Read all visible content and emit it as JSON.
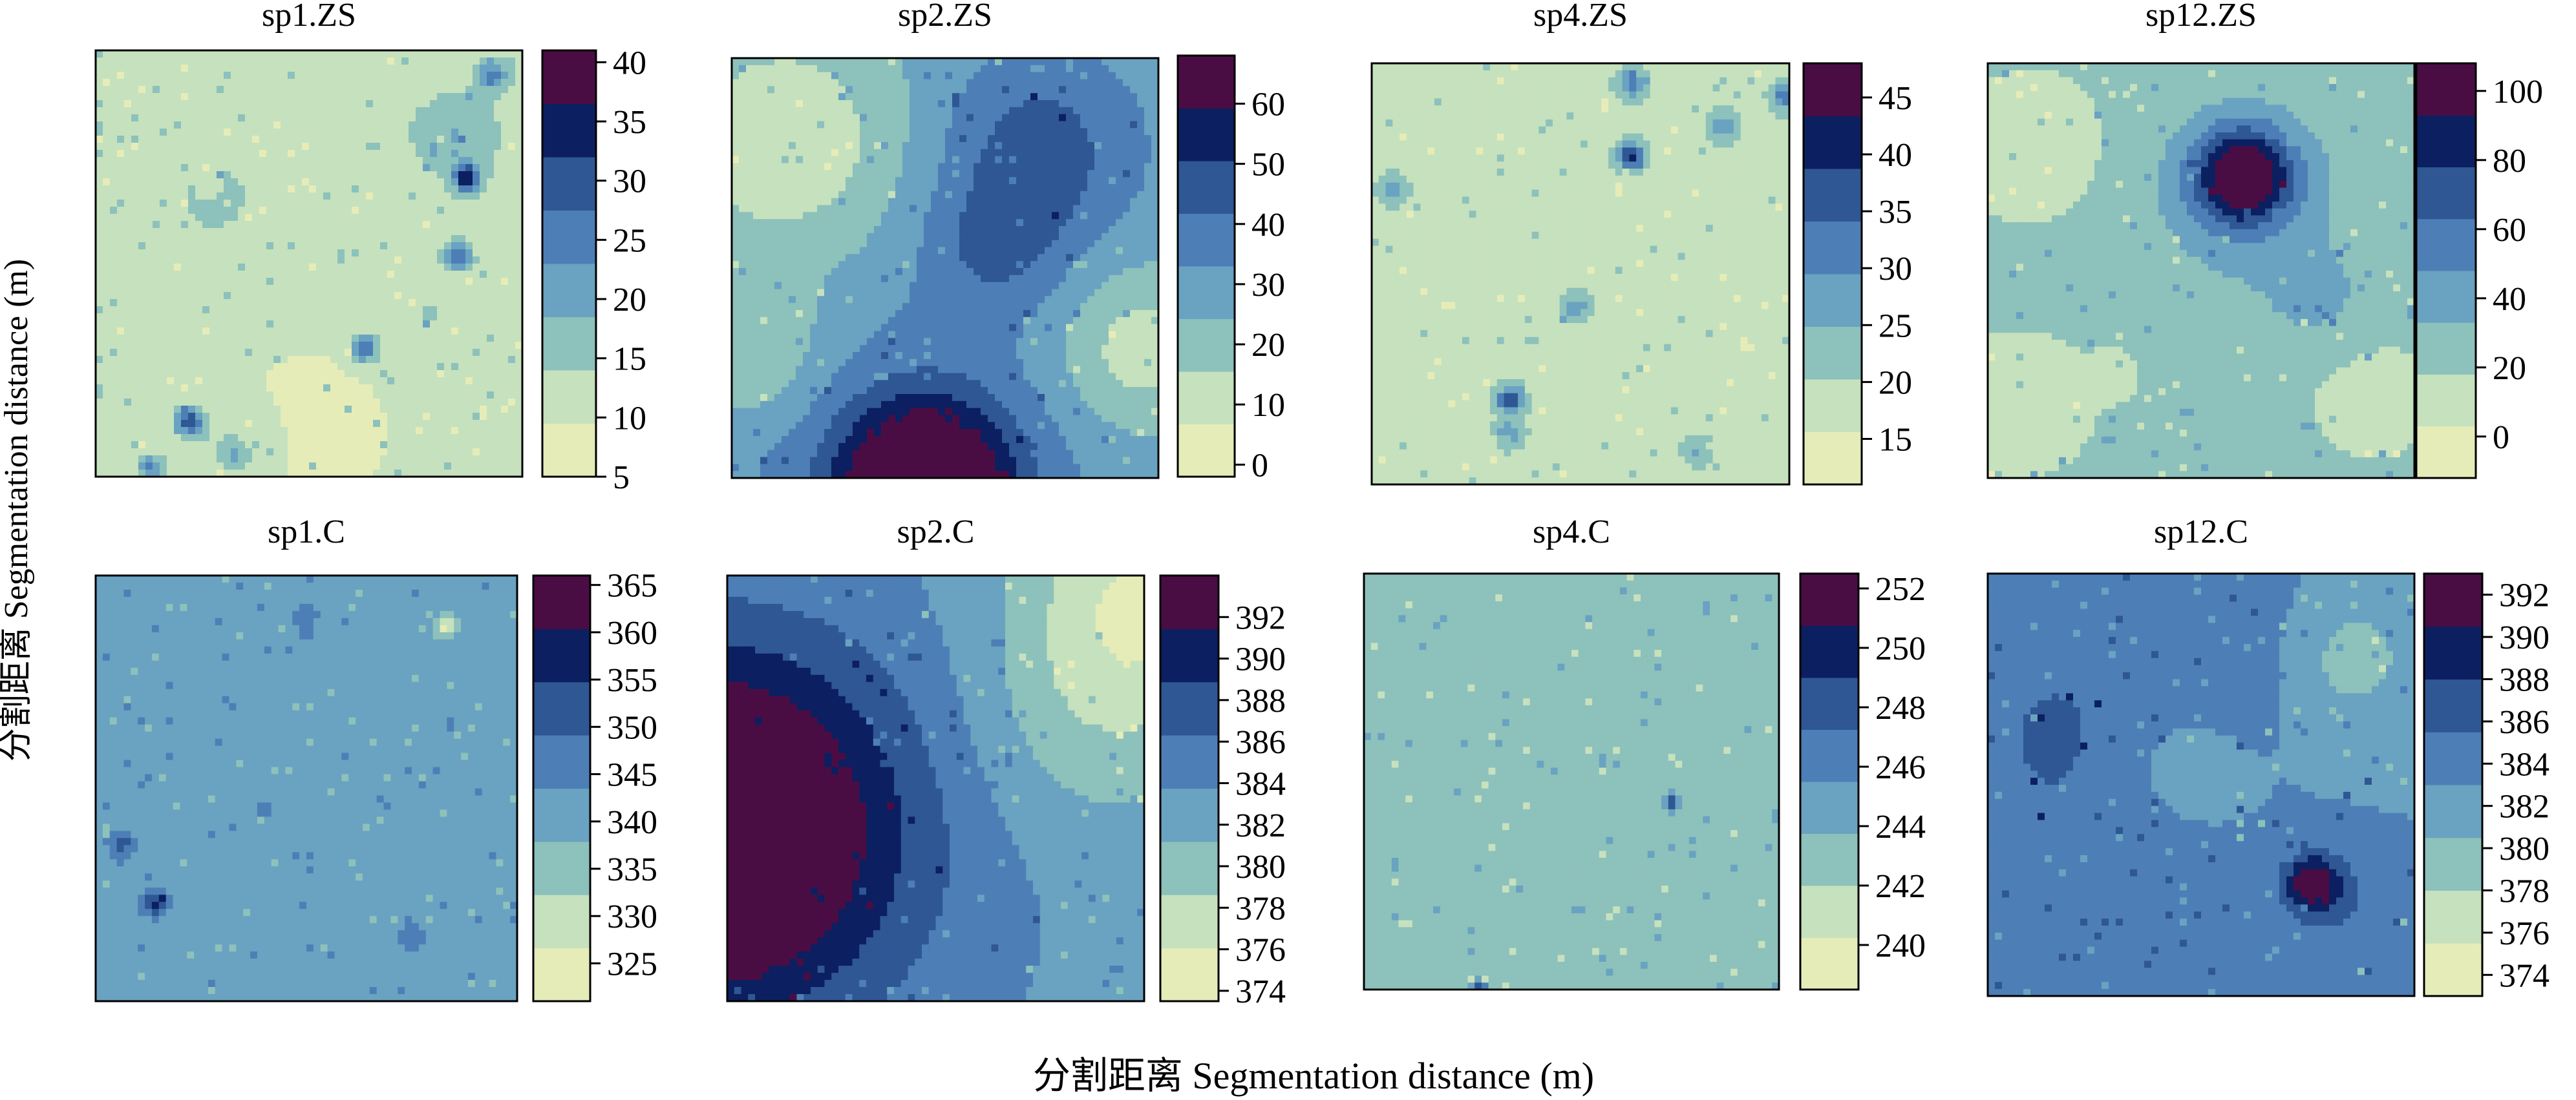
{
  "figure": {
    "xlabel": "分割距离 Segmentation distance (m)",
    "ylabel": "分割距离 Segmentation distance (m)"
  },
  "palette": [
    "#e6ecb8",
    "#c6e1bd",
    "#8dc1bb",
    "#6aa2c1",
    "#4d7fb6",
    "#2e5794",
    "#0c1f60",
    "#4a0d43"
  ],
  "chart_data": [
    {
      "type": "heatmap",
      "title": "sp1.ZS",
      "colorbar_ticks": [
        5,
        10,
        15,
        20,
        25,
        30,
        35,
        40
      ],
      "colorbar_range": [
        5,
        41
      ],
      "bands": 8,
      "background_value": 12,
      "grid": false,
      "legend": "colorbar-right"
    },
    {
      "type": "heatmap",
      "title": "sp2.ZS",
      "colorbar_ticks": [
        0,
        10,
        20,
        30,
        40,
        50,
        60
      ],
      "colorbar_range": [
        -2,
        68
      ],
      "bands": 8,
      "background_value": 30,
      "grid": false,
      "legend": "colorbar-right"
    },
    {
      "type": "heatmap",
      "title": "sp4.ZS",
      "colorbar_ticks": [
        15,
        20,
        25,
        30,
        35,
        40,
        45
      ],
      "colorbar_range": [
        11,
        48
      ],
      "bands": 8,
      "background_value": 20,
      "grid": false,
      "legend": "colorbar-right"
    },
    {
      "type": "heatmap",
      "title": "sp12.ZS",
      "colorbar_ticks": [
        0,
        20,
        40,
        60,
        80,
        100
      ],
      "colorbar_range": [
        -12,
        108
      ],
      "bands": 8,
      "background_value": 25,
      "grid": false,
      "legend": "colorbar-right"
    },
    {
      "type": "heatmap",
      "title": "sp1.C",
      "colorbar_ticks": [
        325,
        330,
        335,
        340,
        345,
        350,
        355,
        360,
        365
      ],
      "colorbar_range": [
        321,
        366
      ],
      "bands": 8,
      "background_value": 342,
      "grid": false,
      "legend": "colorbar-right"
    },
    {
      "type": "heatmap",
      "title": "sp2.C",
      "colorbar_ticks": [
        374,
        376,
        378,
        380,
        382,
        384,
        386,
        388,
        390,
        392
      ],
      "colorbar_range": [
        373.5,
        394
      ],
      "bands": 8,
      "background_value": 383,
      "grid": false,
      "legend": "colorbar-right"
    },
    {
      "type": "heatmap",
      "title": "sp4.C",
      "colorbar_ticks": [
        240,
        242,
        244,
        246,
        248,
        250,
        252
      ],
      "colorbar_range": [
        238.5,
        252.5
      ],
      "bands": 8,
      "background_value": 243,
      "grid": false,
      "legend": "colorbar-right"
    },
    {
      "type": "heatmap",
      "title": "sp12.C",
      "colorbar_ticks": [
        374,
        376,
        378,
        380,
        382,
        384,
        386,
        388,
        390,
        392
      ],
      "colorbar_range": [
        373,
        393
      ],
      "bands": 8,
      "background_value": 382,
      "grid": false,
      "legend": "colorbar-right"
    }
  ]
}
